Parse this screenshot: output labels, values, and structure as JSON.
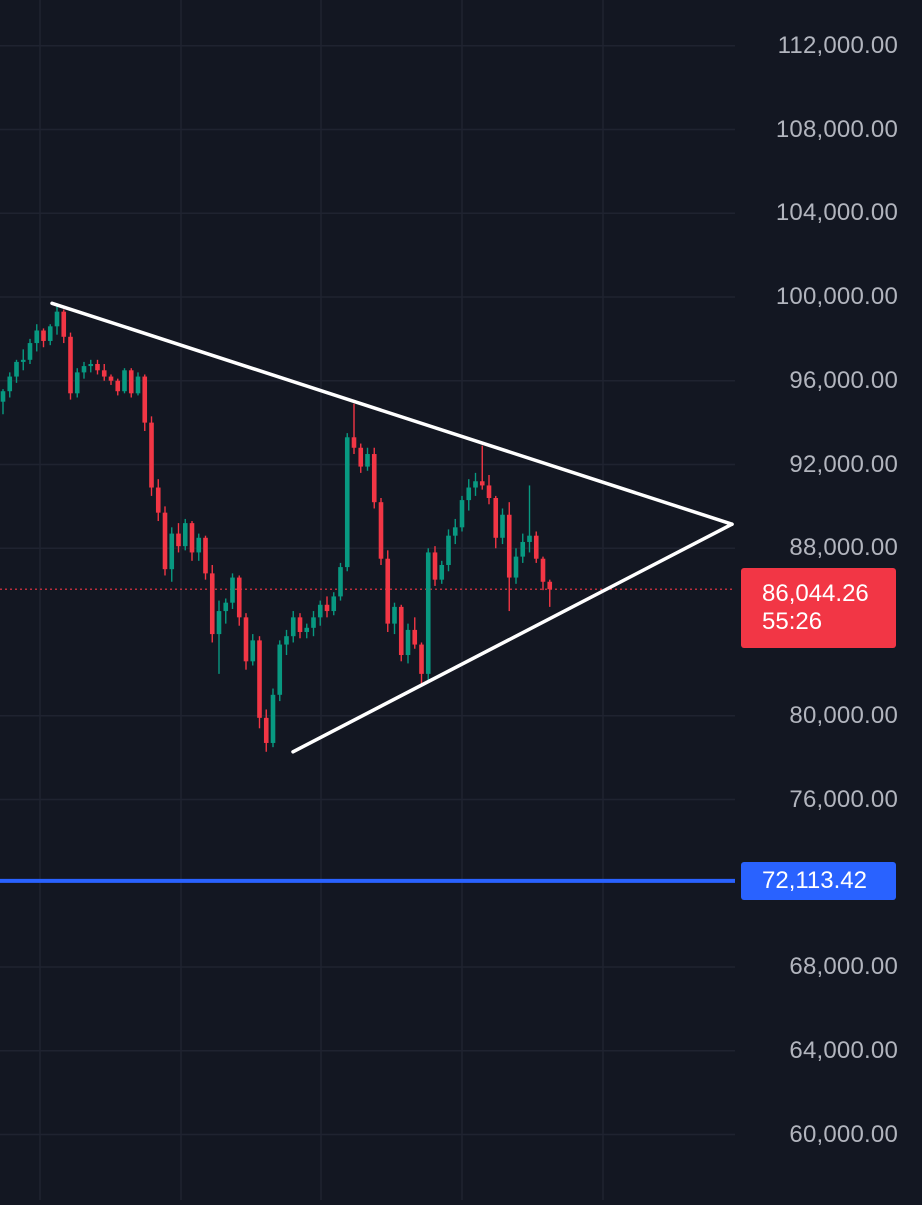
{
  "chart_data": {
    "type": "candlestick",
    "yaxis": {
      "ticks": [
        "112,000.00",
        "108,000.00",
        "104,000.00",
        "100,000.00",
        "96,000.00",
        "92,000.00",
        "88,000.00",
        "80,000.00",
        "76,000.00",
        "68,000.00",
        "64,000.00",
        "60,000.00"
      ],
      "tick_values": [
        112000,
        108000,
        104000,
        100000,
        96000,
        92000,
        88000,
        80000,
        76000,
        68000,
        64000,
        60000
      ],
      "ylim": [
        57000,
        113500
      ]
    },
    "grid": true,
    "current_price": {
      "label": "86,044.26",
      "value": 86044.26,
      "countdown": "55:26"
    },
    "horizontal_level": {
      "label": "72,113.42",
      "value": 72113.42
    },
    "trendlines": [
      {
        "from": [
          0,
          99700
        ],
        "to": [
          96,
          89150
        ]
      },
      {
        "from": [
          39,
          78280
        ],
        "to": [
          96,
          89150
        ]
      }
    ],
    "series": [
      {
        "values": [
          [
            95000,
            95600,
            94400,
            95500
          ],
          [
            95500,
            96400,
            95200,
            96200
          ],
          [
            96200,
            97000,
            95900,
            96900
          ],
          [
            96900,
            97500,
            96500,
            97000
          ],
          [
            97000,
            98000,
            96800,
            97800
          ],
          [
            97800,
            98700,
            97400,
            98400
          ],
          [
            98400,
            98500,
            97600,
            97900
          ],
          [
            97900,
            98700,
            97700,
            98600
          ],
          [
            98600,
            99700,
            98200,
            99300
          ],
          [
            99300,
            99400,
            97800,
            98100
          ],
          [
            98100,
            98300,
            95100,
            95400
          ],
          [
            95400,
            96600,
            95200,
            96400
          ],
          [
            96400,
            96900,
            96100,
            96700
          ],
          [
            96700,
            97000,
            96400,
            96800
          ],
          [
            96800,
            97000,
            96300,
            96500
          ],
          [
            96500,
            96800,
            96000,
            96200
          ],
          [
            96200,
            96300,
            95800,
            96000
          ],
          [
            96000,
            96100,
            95300,
            95500
          ],
          [
            95500,
            96600,
            95400,
            96500
          ],
          [
            96500,
            96600,
            95200,
            95400
          ],
          [
            95400,
            96400,
            95300,
            96200
          ],
          [
            96200,
            96300,
            93600,
            94000
          ],
          [
            94000,
            94300,
            90500,
            90900
          ],
          [
            90900,
            91300,
            89300,
            89700
          ],
          [
            89700,
            90000,
            86700,
            87000
          ],
          [
            87000,
            89000,
            86400,
            88700
          ],
          [
            88700,
            89200,
            87800,
            88100
          ],
          [
            88100,
            89400,
            87900,
            89200
          ],
          [
            89200,
            89300,
            87400,
            87800
          ],
          [
            87800,
            88700,
            87400,
            88500
          ],
          [
            88500,
            88600,
            86500,
            86800
          ],
          [
            86800,
            87200,
            83500,
            83900
          ],
          [
            83900,
            85500,
            82000,
            85000
          ],
          [
            85000,
            85600,
            84400,
            85400
          ],
          [
            85400,
            86800,
            85100,
            86600
          ],
          [
            86600,
            86700,
            84300,
            84700
          ],
          [
            84700,
            84900,
            82200,
            82600
          ],
          [
            82600,
            83900,
            82400,
            83600
          ],
          [
            83600,
            83800,
            79400,
            79900
          ],
          [
            79900,
            80300,
            78280,
            78700
          ],
          [
            78700,
            81300,
            78500,
            81000
          ],
          [
            81000,
            83600,
            80700,
            83400
          ],
          [
            83400,
            84100,
            82900,
            83800
          ],
          [
            83800,
            85000,
            83500,
            84700
          ],
          [
            84700,
            84900,
            83700,
            84000
          ],
          [
            84000,
            84400,
            83700,
            84200
          ],
          [
            84200,
            85000,
            83800,
            84700
          ],
          [
            84700,
            85500,
            84300,
            85300
          ],
          [
            85300,
            85700,
            84700,
            85000
          ],
          [
            85000,
            85900,
            84800,
            85700
          ],
          [
            85700,
            87300,
            85500,
            87100
          ],
          [
            87100,
            93500,
            86900,
            93300
          ],
          [
            93300,
            94900,
            92500,
            92800
          ],
          [
            92800,
            93000,
            91600,
            91900
          ],
          [
            91900,
            92800,
            91700,
            92500
          ],
          [
            92500,
            92800,
            89900,
            90200
          ],
          [
            90200,
            90400,
            87200,
            87500
          ],
          [
            87500,
            87900,
            84000,
            84400
          ],
          [
            84400,
            85400,
            83900,
            85200
          ],
          [
            85200,
            85300,
            82600,
            82900
          ],
          [
            82900,
            84400,
            82500,
            84100
          ],
          [
            84100,
            84700,
            83200,
            83400
          ],
          [
            83400,
            83500,
            81500,
            82000
          ],
          [
            82000,
            88000,
            81700,
            87800
          ],
          [
            87800,
            88100,
            86200,
            86500
          ],
          [
            86500,
            87400,
            86300,
            87200
          ],
          [
            87200,
            88900,
            86900,
            88600
          ],
          [
            88600,
            89400,
            88200,
            89000
          ],
          [
            89000,
            90500,
            88800,
            90300
          ],
          [
            90300,
            91300,
            89800,
            90900
          ],
          [
            90900,
            91600,
            90500,
            91200
          ],
          [
            91200,
            92900,
            90800,
            91000
          ],
          [
            91000,
            91500,
            90100,
            90400
          ],
          [
            90400,
            90500,
            88000,
            88500
          ],
          [
            88500,
            89900,
            88200,
            89600
          ],
          [
            89600,
            90200,
            85000,
            86600
          ],
          [
            86600,
            88000,
            86300,
            87600
          ],
          [
            87600,
            88700,
            87300,
            88300
          ],
          [
            88300,
            91000,
            87800,
            88600
          ],
          [
            88600,
            88800,
            87300,
            87500
          ],
          [
            87500,
            87600,
            86000,
            86400
          ],
          [
            86400,
            86500,
            85200,
            86044
          ]
        ]
      }
    ]
  }
}
